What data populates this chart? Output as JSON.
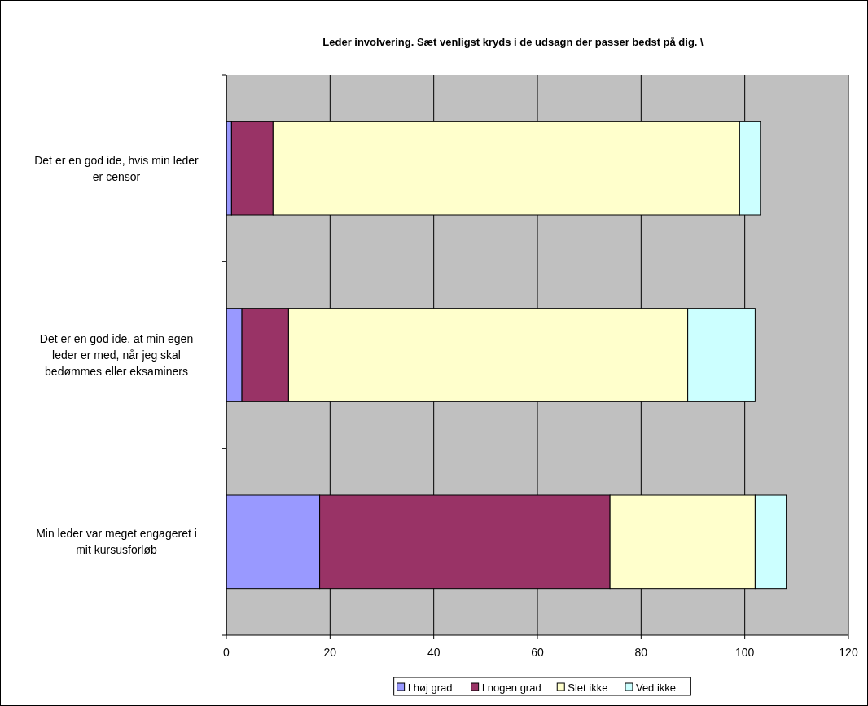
{
  "chart_data": {
    "type": "bar",
    "orientation": "horizontal",
    "stacked": true,
    "title": "Leder involvering. Sæt venligst kryds i de udsagn der passer bedst på dig. \\",
    "categories": [
      "Det er en god ide, hvis min leder er censor",
      "Det er en god ide, at min egen leder er med, når jeg skal bedømmes eller eksaminers",
      "Min leder var meget engageret i mit kursusforløb"
    ],
    "series": [
      {
        "name": "I høj grad",
        "color": "#9999ff",
        "values": [
          1,
          3,
          18
        ]
      },
      {
        "name": "I nogen grad",
        "color": "#993366",
        "values": [
          8,
          9,
          56
        ]
      },
      {
        "name": "Slet ikke",
        "color": "#ffffcc",
        "values": [
          90,
          77,
          28
        ]
      },
      {
        "name": "Ved ikke",
        "color": "#ccffff",
        "values": [
          4,
          13,
          6
        ]
      }
    ],
    "xlim": [
      0,
      120
    ],
    "xticks": [
      0,
      20,
      40,
      60,
      80,
      100,
      120
    ],
    "grid": "x",
    "legend": "bottom"
  }
}
